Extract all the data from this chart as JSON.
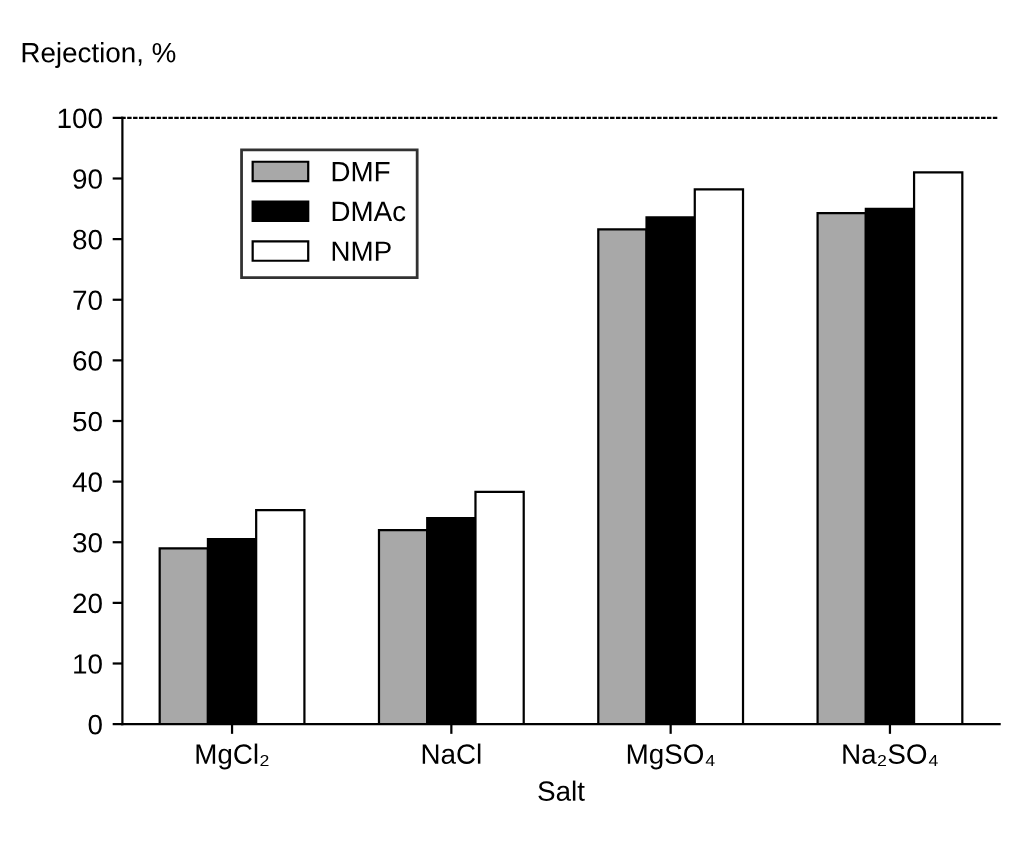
{
  "chart_data": {
    "type": "bar",
    "ylabel": "Rejection, %",
    "xlabel": "Salt",
    "categories": [
      "MgCl₂",
      "NaCl",
      "MgSO₄",
      "Na₂SO₄"
    ],
    "series": [
      {
        "name": "DMF",
        "color": "#a8a8a8",
        "values": [
          29,
          32,
          81.6,
          84.3
        ]
      },
      {
        "name": "DMAc",
        "color": "#000000",
        "values": [
          30.5,
          34,
          83.6,
          85
        ]
      },
      {
        "name": "NMP",
        "color": "#ffffff",
        "values": [
          35.3,
          38.3,
          88.2,
          91
        ]
      }
    ],
    "ylim": [
      0,
      100
    ],
    "yticks": [
      0,
      10,
      20,
      30,
      40,
      50,
      60,
      70,
      80,
      90,
      100
    ],
    "grid": false,
    "legend": "top left"
  }
}
